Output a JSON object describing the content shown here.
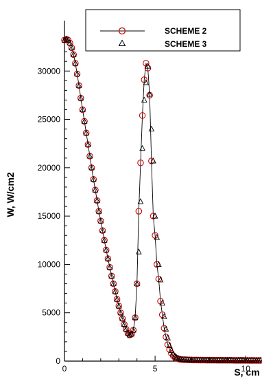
{
  "chart_data": {
    "type": "scatter",
    "xlabel": "S, cm",
    "ylabel": "W, W/cm2",
    "xlim": [
      0,
      10.9
    ],
    "ylim": [
      0,
      34500
    ],
    "x_ticks": [
      0,
      5,
      10
    ],
    "x_tick_labels": [
      "0",
      "5",
      "10"
    ],
    "y_ticks": [
      0,
      5000,
      10000,
      15000,
      20000,
      25000,
      30000
    ],
    "y_tick_labels": [
      "0",
      "5000",
      "10000",
      "15000",
      "20000",
      "25000",
      "30000"
    ],
    "grid": false,
    "legend_position": "top-right",
    "series": [
      {
        "name": "SCHEME 2",
        "marker": "circle",
        "line": true,
        "color": "#cc0000",
        "line_color": "#000000",
        "x": [
          0.0,
          0.1,
          0.2,
          0.3,
          0.4,
          0.5,
          0.6,
          0.7,
          0.8,
          0.9,
          1.0,
          1.1,
          1.2,
          1.3,
          1.4,
          1.5,
          1.6,
          1.7,
          1.8,
          1.9,
          2.0,
          2.1,
          2.2,
          2.3,
          2.4,
          2.5,
          2.6,
          2.7,
          2.8,
          2.9,
          3.0,
          3.1,
          3.2,
          3.3,
          3.4,
          3.5,
          3.6,
          3.7,
          3.8,
          3.9,
          4.0,
          4.1,
          4.2,
          4.3,
          4.4,
          4.5,
          4.6,
          4.7,
          4.8,
          4.9,
          5.0,
          5.1,
          5.2,
          5.3,
          5.4,
          5.5,
          5.6,
          5.7,
          5.8,
          5.9,
          6.0,
          6.1,
          6.2,
          6.3,
          6.4,
          6.5,
          6.6,
          6.7,
          6.8,
          6.9,
          7.0,
          7.1,
          7.2,
          7.3,
          7.4,
          7.5,
          7.6,
          7.7,
          7.8,
          7.9,
          8.0,
          8.1,
          8.2,
          8.3,
          8.4,
          8.5,
          8.6,
          8.7,
          8.8,
          8.9,
          9.0,
          9.1,
          9.2,
          9.3,
          9.4,
          9.5,
          9.6,
          9.7,
          9.8,
          9.9,
          10.0,
          10.1,
          10.2,
          10.3,
          10.4,
          10.5,
          10.6,
          10.7,
          10.8
        ],
        "y": [
          33200,
          33300,
          33200,
          32900,
          32400,
          31700,
          30800,
          29700,
          28500,
          27200,
          26000,
          24800,
          23600,
          22400,
          21200,
          20000,
          18800,
          17700,
          16600,
          15500,
          14500,
          13500,
          12500,
          11500,
          10600,
          9700,
          8800,
          8000,
          7200,
          6400,
          5700,
          5000,
          4400,
          3800,
          3300,
          2900,
          2700,
          2800,
          3200,
          4500,
          8000,
          15500,
          20500,
          25400,
          29100,
          30800,
          30300,
          27500,
          20700,
          15000,
          13000,
          10000,
          8500,
          6200,
          4800,
          3400,
          2500,
          1700,
          1200,
          800,
          550,
          380,
          280,
          220,
          180,
          160,
          150,
          140,
          130,
          125,
          120,
          118,
          115,
          112,
          110,
          108,
          106,
          104,
          102,
          100,
          98,
          96,
          95,
          94,
          93,
          92,
          91,
          90,
          89,
          88,
          87,
          86,
          85,
          84,
          83,
          82,
          81,
          80,
          79,
          78,
          77,
          76,
          75,
          74,
          73,
          72,
          71,
          70,
          69
        ]
      },
      {
        "name": "SCHEME 3",
        "marker": "triangle",
        "line": false,
        "color": "#000000",
        "x": [
          0.0,
          0.1,
          0.2,
          0.3,
          0.4,
          0.5,
          0.6,
          0.7,
          0.8,
          0.9,
          1.0,
          1.1,
          1.2,
          1.3,
          1.4,
          1.5,
          1.6,
          1.7,
          1.8,
          1.9,
          2.0,
          2.1,
          2.2,
          2.3,
          2.4,
          2.5,
          2.6,
          2.7,
          2.8,
          2.9,
          3.0,
          3.1,
          3.2,
          3.3,
          3.4,
          3.5,
          3.6,
          3.7,
          3.8,
          3.9,
          4.0,
          4.1,
          4.2,
          4.3,
          4.4,
          4.5,
          4.6,
          4.7,
          4.8,
          4.9,
          5.0,
          5.1,
          5.2,
          5.3,
          5.4,
          5.5,
          5.6,
          5.7,
          5.8,
          5.9,
          6.0,
          6.1,
          6.2,
          6.3,
          6.4,
          6.5,
          6.6,
          6.7,
          6.8,
          6.9,
          7.0,
          7.1,
          7.2,
          7.3,
          7.4,
          7.5,
          7.6,
          7.7,
          7.8,
          7.9,
          8.0,
          8.1,
          8.2,
          8.3,
          8.4,
          8.5,
          8.6,
          8.7,
          8.8,
          8.9,
          9.0,
          9.1,
          9.2,
          9.3,
          9.4,
          9.5,
          9.6,
          9.7,
          9.8,
          9.9,
          10.0,
          10.1,
          10.2,
          10.3,
          10.4,
          10.5,
          10.6,
          10.7,
          10.8
        ],
        "y": [
          33200,
          33300,
          33200,
          32900,
          32400,
          31700,
          30800,
          29700,
          28500,
          27200,
          26000,
          24800,
          23600,
          22400,
          21200,
          20000,
          18800,
          17700,
          16600,
          15500,
          14500,
          13500,
          12500,
          11500,
          10600,
          9700,
          8800,
          8000,
          7200,
          6400,
          5700,
          5000,
          4400,
          3800,
          3300,
          2900,
          2700,
          2800,
          3200,
          4500,
          8000,
          11300,
          16500,
          22000,
          27000,
          28800,
          30500,
          27600,
          24000,
          20700,
          15000,
          12800,
          10000,
          8400,
          6000,
          4600,
          3300,
          2400,
          1600,
          1100,
          750,
          520,
          370,
          270,
          210,
          175,
          158,
          146,
          136,
          128,
          122,
          118,
          115,
          112,
          110,
          108,
          106,
          104,
          102,
          100,
          98,
          96,
          95,
          94,
          93,
          92,
          91,
          90,
          89,
          88,
          87,
          86,
          85,
          84,
          83,
          82,
          81,
          80,
          79,
          78,
          77,
          76,
          75,
          74,
          73,
          72,
          71,
          70,
          69
        ]
      }
    ]
  }
}
